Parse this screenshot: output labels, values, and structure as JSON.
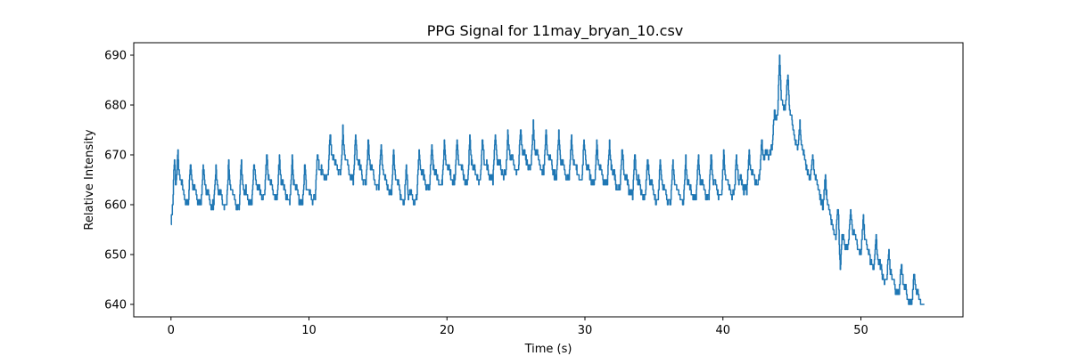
{
  "chart_data": {
    "type": "line",
    "title": "PPG Signal for 11may_bryan_10.csv",
    "xlabel": "Time (s)",
    "ylabel": "Relative Intensity",
    "xlim": [
      -2.7,
      57.4
    ],
    "ylim": [
      637.5,
      692.5
    ],
    "xticks": [
      0,
      10,
      20,
      30,
      40,
      50
    ],
    "yticks": [
      640,
      650,
      660,
      670,
      680,
      690
    ],
    "grid": false,
    "legend": "none",
    "color": "#1f77b4",
    "series": [
      {
        "baseline_points": [
          [
            0.0,
            659
          ],
          [
            0.2,
            666
          ],
          [
            1.0,
            664
          ],
          [
            3.0,
            663
          ],
          [
            5.0,
            663
          ],
          [
            7.0,
            665
          ],
          [
            9.0,
            664
          ],
          [
            10.0,
            663
          ],
          [
            11.0,
            668
          ],
          [
            12.0,
            670
          ],
          [
            13.0,
            669
          ],
          [
            15.0,
            667
          ],
          [
            16.5,
            665
          ],
          [
            17.2,
            662
          ],
          [
            18.0,
            666
          ],
          [
            20.0,
            668
          ],
          [
            22.0,
            668
          ],
          [
            24.0,
            669
          ],
          [
            26.0,
            671
          ],
          [
            28.0,
            669
          ],
          [
            30.0,
            668
          ],
          [
            32.0,
            667
          ],
          [
            34.0,
            665
          ],
          [
            35.5,
            664
          ],
          [
            37.0,
            664
          ],
          [
            39.0,
            665
          ],
          [
            41.0,
            665
          ],
          [
            42.5,
            667
          ],
          [
            43.2,
            671
          ],
          [
            43.8,
            676
          ],
          [
            44.2,
            683
          ],
          [
            44.8,
            679
          ],
          [
            45.5,
            673
          ],
          [
            46.2,
            668
          ],
          [
            47.0,
            664
          ],
          [
            47.8,
            659
          ],
          [
            48.5,
            654
          ],
          [
            49.5,
            655
          ],
          [
            50.5,
            652
          ],
          [
            51.5,
            648
          ],
          [
            52.5,
            645
          ],
          [
            53.5,
            643
          ],
          [
            54.6,
            642
          ]
        ],
        "pulse_period_s": 0.92,
        "pulse_amplitude": [
          [
            0.0,
            9
          ],
          [
            10.0,
            9
          ],
          [
            20.0,
            9
          ],
          [
            30.0,
            9
          ],
          [
            40.0,
            9
          ],
          [
            43.0,
            7
          ],
          [
            44.2,
            6
          ],
          [
            46.0,
            6
          ],
          [
            48.0,
            8
          ],
          [
            50.0,
            8
          ],
          [
            52.0,
            7
          ],
          [
            54.6,
            6
          ]
        ],
        "peaks": [
          [
            0.25,
            669
          ],
          [
            44.1,
            690
          ],
          [
            44.7,
            686
          ],
          [
            48.5,
            647
          ],
          [
            54.6,
            640
          ]
        ]
      }
    ]
  }
}
